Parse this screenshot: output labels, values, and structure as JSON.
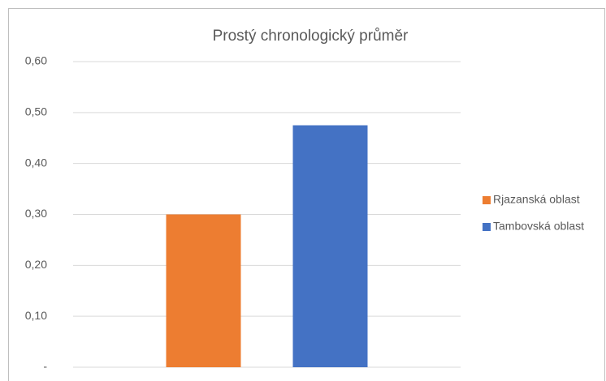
{
  "chart_data": {
    "type": "bar",
    "title": "Prostý chronologický průměr",
    "categories": [
      null
    ],
    "series": [
      {
        "name": "Rjazanská oblast",
        "color": "#ed7d31",
        "values": [
          0.3
        ]
      },
      {
        "name": "Tambovská oblast",
        "color": "#4472c4",
        "values": [
          0.475
        ]
      }
    ],
    "ylim": [
      0,
      0.6
    ],
    "yticks": [
      {
        "value": 0,
        "label": "-"
      },
      {
        "value": 0.1,
        "label": "0,10"
      },
      {
        "value": 0.2,
        "label": "0,20"
      },
      {
        "value": 0.3,
        "label": "0,30"
      },
      {
        "value": 0.4,
        "label": "0,40"
      },
      {
        "value": 0.5,
        "label": "0,50"
      },
      {
        "value": 0.6,
        "label": "0,60"
      }
    ],
    "grid": true,
    "legend": "right"
  }
}
